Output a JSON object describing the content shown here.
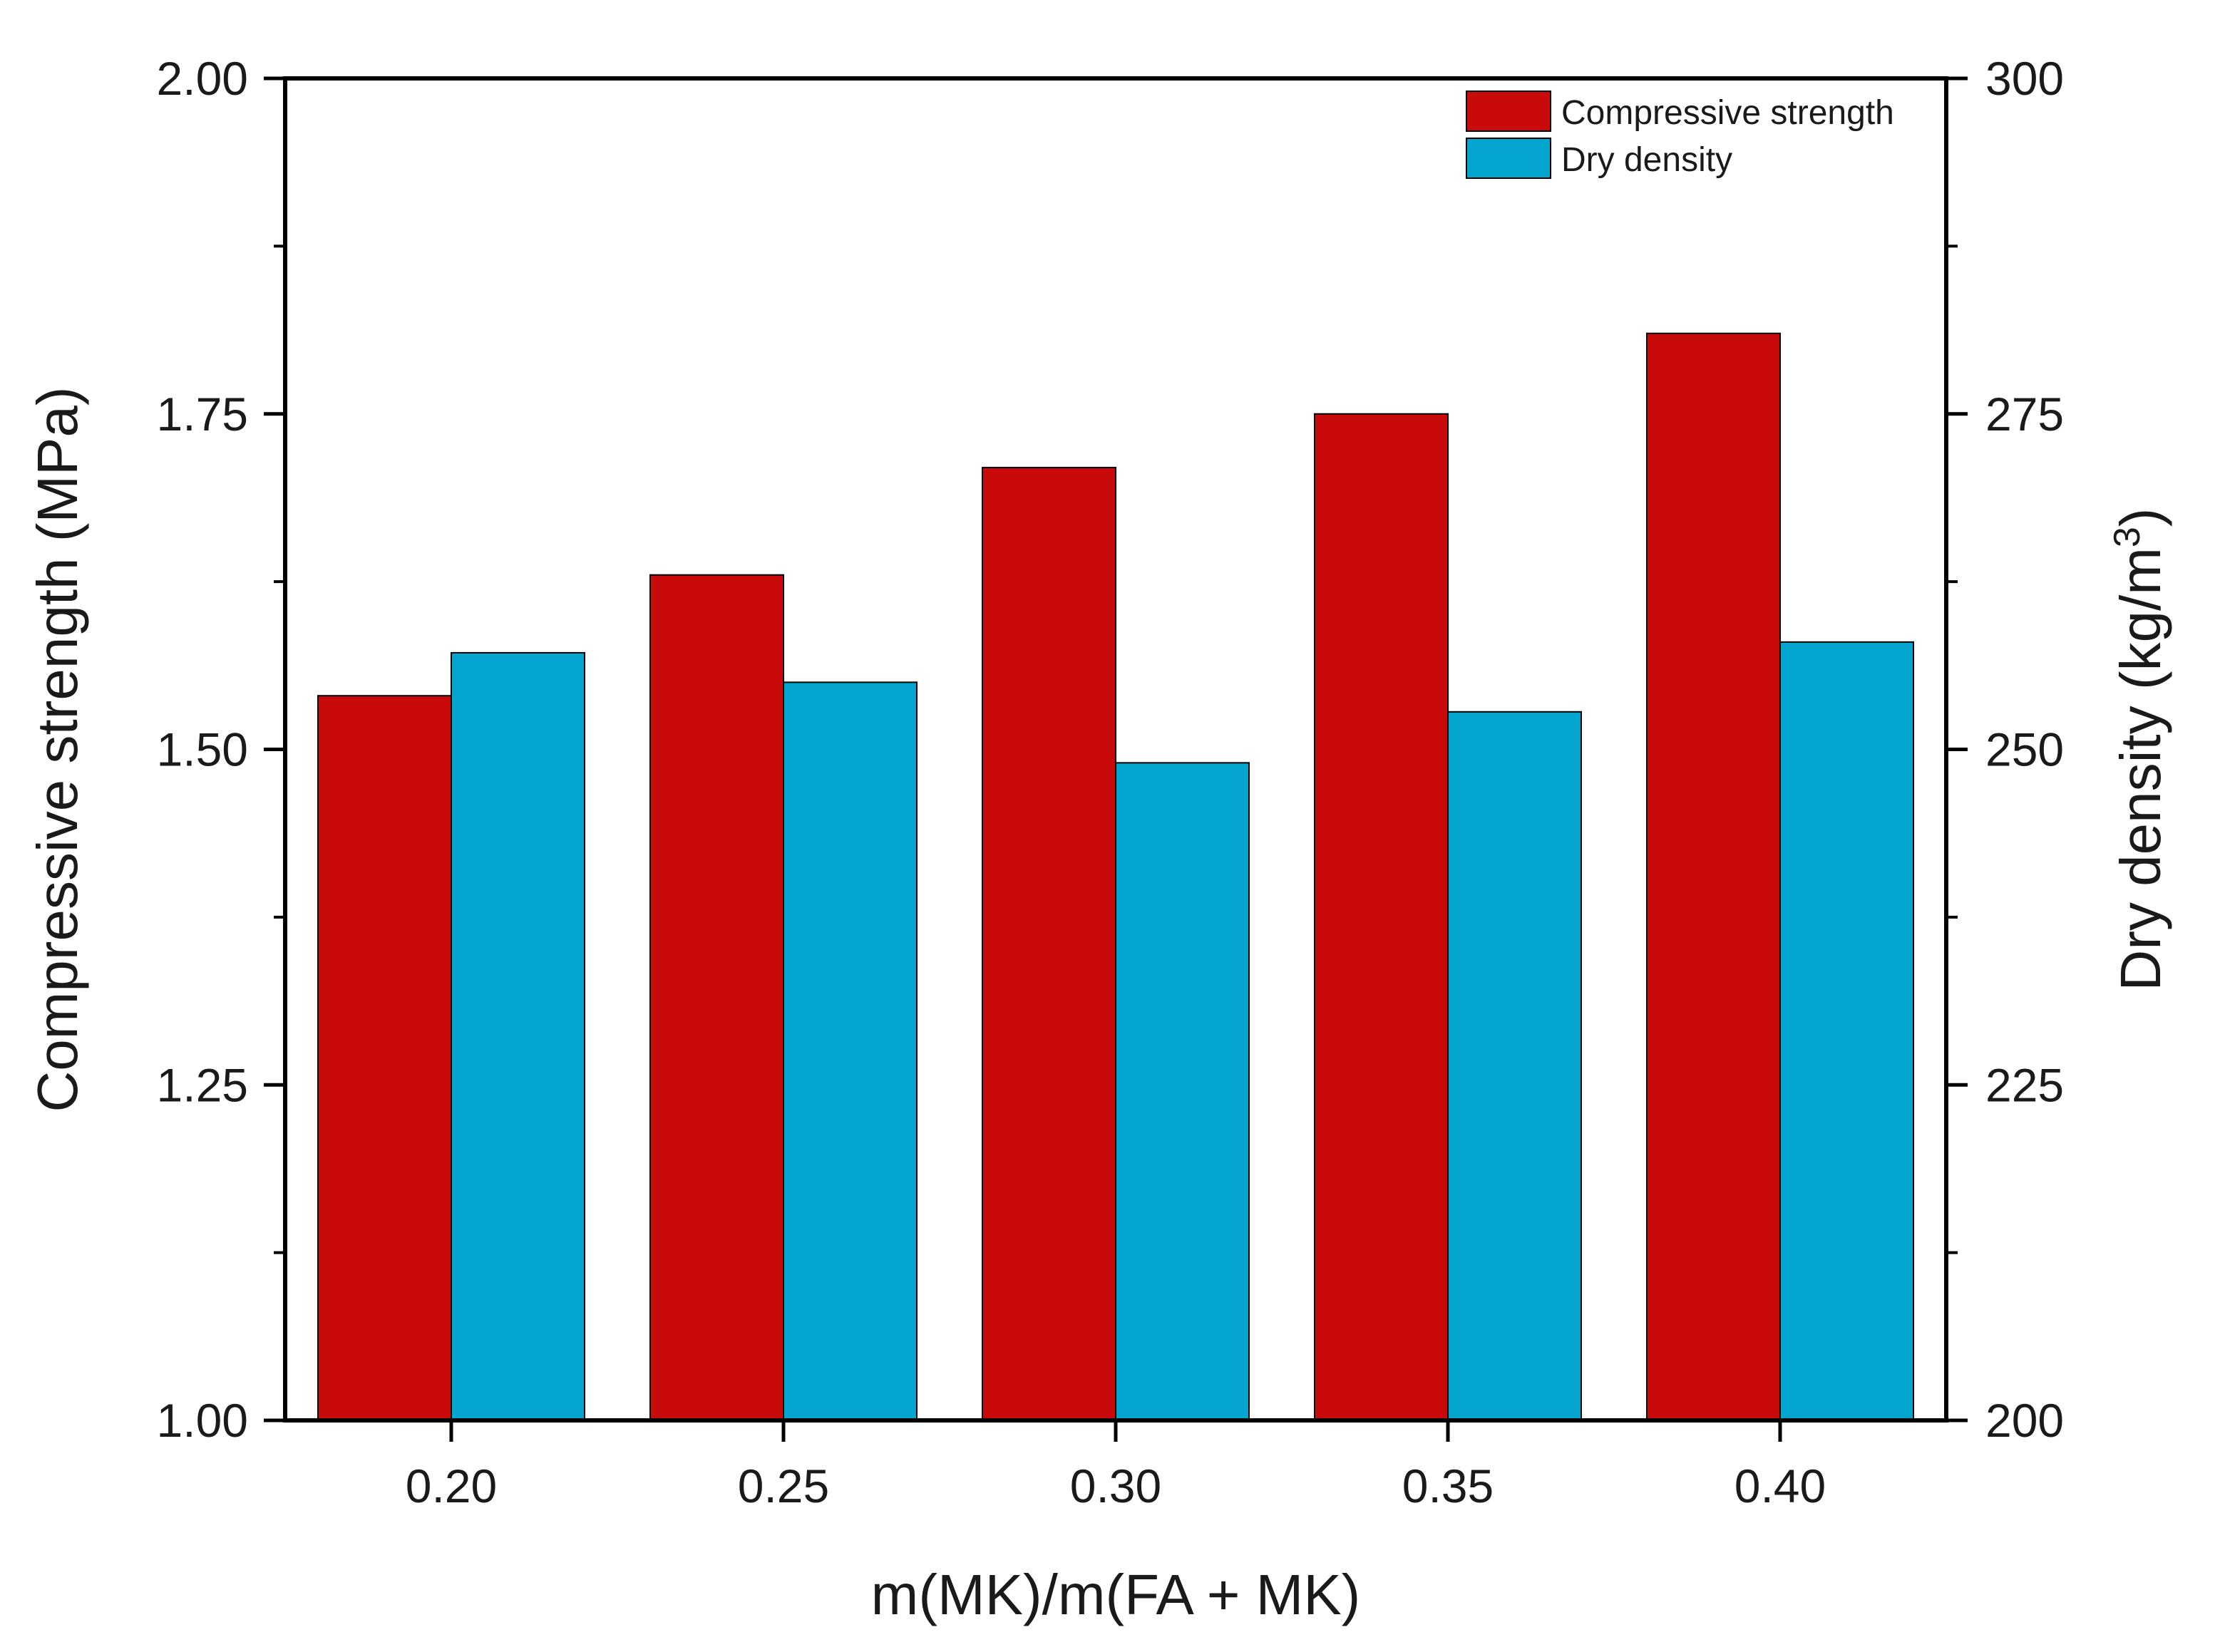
{
  "chart_data": {
    "type": "bar",
    "title": "",
    "xlabel": "m(MK)/m(FA + MK)",
    "ylabel_left": "Compressive strength (MPa)",
    "ylabel_right_prefix": "Dry density (kg/m",
    "ylabel_right_sup": "3",
    "ylabel_right_suffix": ")",
    "ylabel_right": "Dry density (kg/m³)",
    "categories": [
      "0.20",
      "0.25",
      "0.30",
      "0.35",
      "0.40"
    ],
    "ylim_left": [
      1.0,
      2.0
    ],
    "ylim_right": [
      200,
      300
    ],
    "yticks_left": [
      "1.00",
      "1.25",
      "1.50",
      "1.75",
      "2.00"
    ],
    "yticks_right": [
      "200",
      "225",
      "250",
      "275",
      "300"
    ],
    "legend_position": "top-right",
    "grid": false,
    "series": [
      {
        "name": "Compressive strength",
        "axis": "left",
        "color": "#c80a0a",
        "values": [
          1.54,
          1.63,
          1.71,
          1.75,
          1.81
        ]
      },
      {
        "name": "Dry density",
        "axis": "right",
        "color": "#04a6cf",
        "values": [
          257.2,
          255.0,
          249.0,
          252.8,
          258.0
        ]
      }
    ]
  }
}
